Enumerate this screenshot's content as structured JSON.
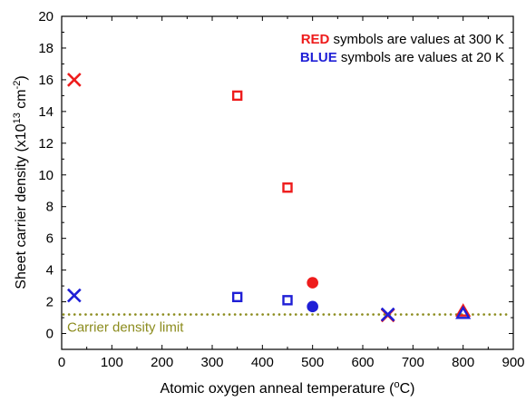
{
  "chart_data": {
    "type": "scatter",
    "xlabel": {
      "prefix": "Atomic oxygen anneal temperature (",
      "superscript": "o",
      "suffix": "C)"
    },
    "ylabel": {
      "prefix": "Sheet carrier density (x10",
      "superscript1": "13",
      "middle": " cm",
      "superscript2": "-2",
      "suffix": ")"
    },
    "xlim": [
      0,
      900
    ],
    "ylim": [
      -1,
      20
    ],
    "xticks": [
      0,
      100,
      200,
      300,
      400,
      500,
      600,
      700,
      800,
      900
    ],
    "yticks": [
      0,
      2,
      4,
      6,
      8,
      10,
      12,
      14,
      16,
      18,
      20
    ],
    "grid": false,
    "legend": {
      "placement": "top-right",
      "entries": [
        {
          "strong": "RED",
          "rest": " symbols are values at 300 K",
          "color": "#ee1c1c"
        },
        {
          "strong": "BLUE",
          "rest": " symbols are values at 20 K",
          "color": "#1f1fd6"
        }
      ]
    },
    "reference_line": {
      "label": "Carrier density limit",
      "y": 1.2,
      "color": "#8c8c1e",
      "style": "dotted"
    },
    "series": [
      {
        "color": "#ee1c1c",
        "points": [
          {
            "x": 25,
            "y": 16.0,
            "marker": "x"
          },
          {
            "x": 350,
            "y": 15.0,
            "marker": "square-open"
          },
          {
            "x": 450,
            "y": 9.2,
            "marker": "square-open"
          },
          {
            "x": 500,
            "y": 3.2,
            "marker": "circle-filled"
          },
          {
            "x": 650,
            "y": 1.15,
            "marker": "x"
          },
          {
            "x": 800,
            "y": 1.4,
            "marker": "triangle-open"
          }
        ]
      },
      {
        "color": "#1f1fd6",
        "points": [
          {
            "x": 25,
            "y": 2.4,
            "marker": "x"
          },
          {
            "x": 350,
            "y": 2.3,
            "marker": "square-open"
          },
          {
            "x": 450,
            "y": 2.1,
            "marker": "square-open"
          },
          {
            "x": 500,
            "y": 1.7,
            "marker": "circle-filled"
          },
          {
            "x": 650,
            "y": 1.2,
            "marker": "x"
          },
          {
            "x": 800,
            "y": 1.25,
            "marker": "triangle-open"
          }
        ]
      }
    ]
  }
}
